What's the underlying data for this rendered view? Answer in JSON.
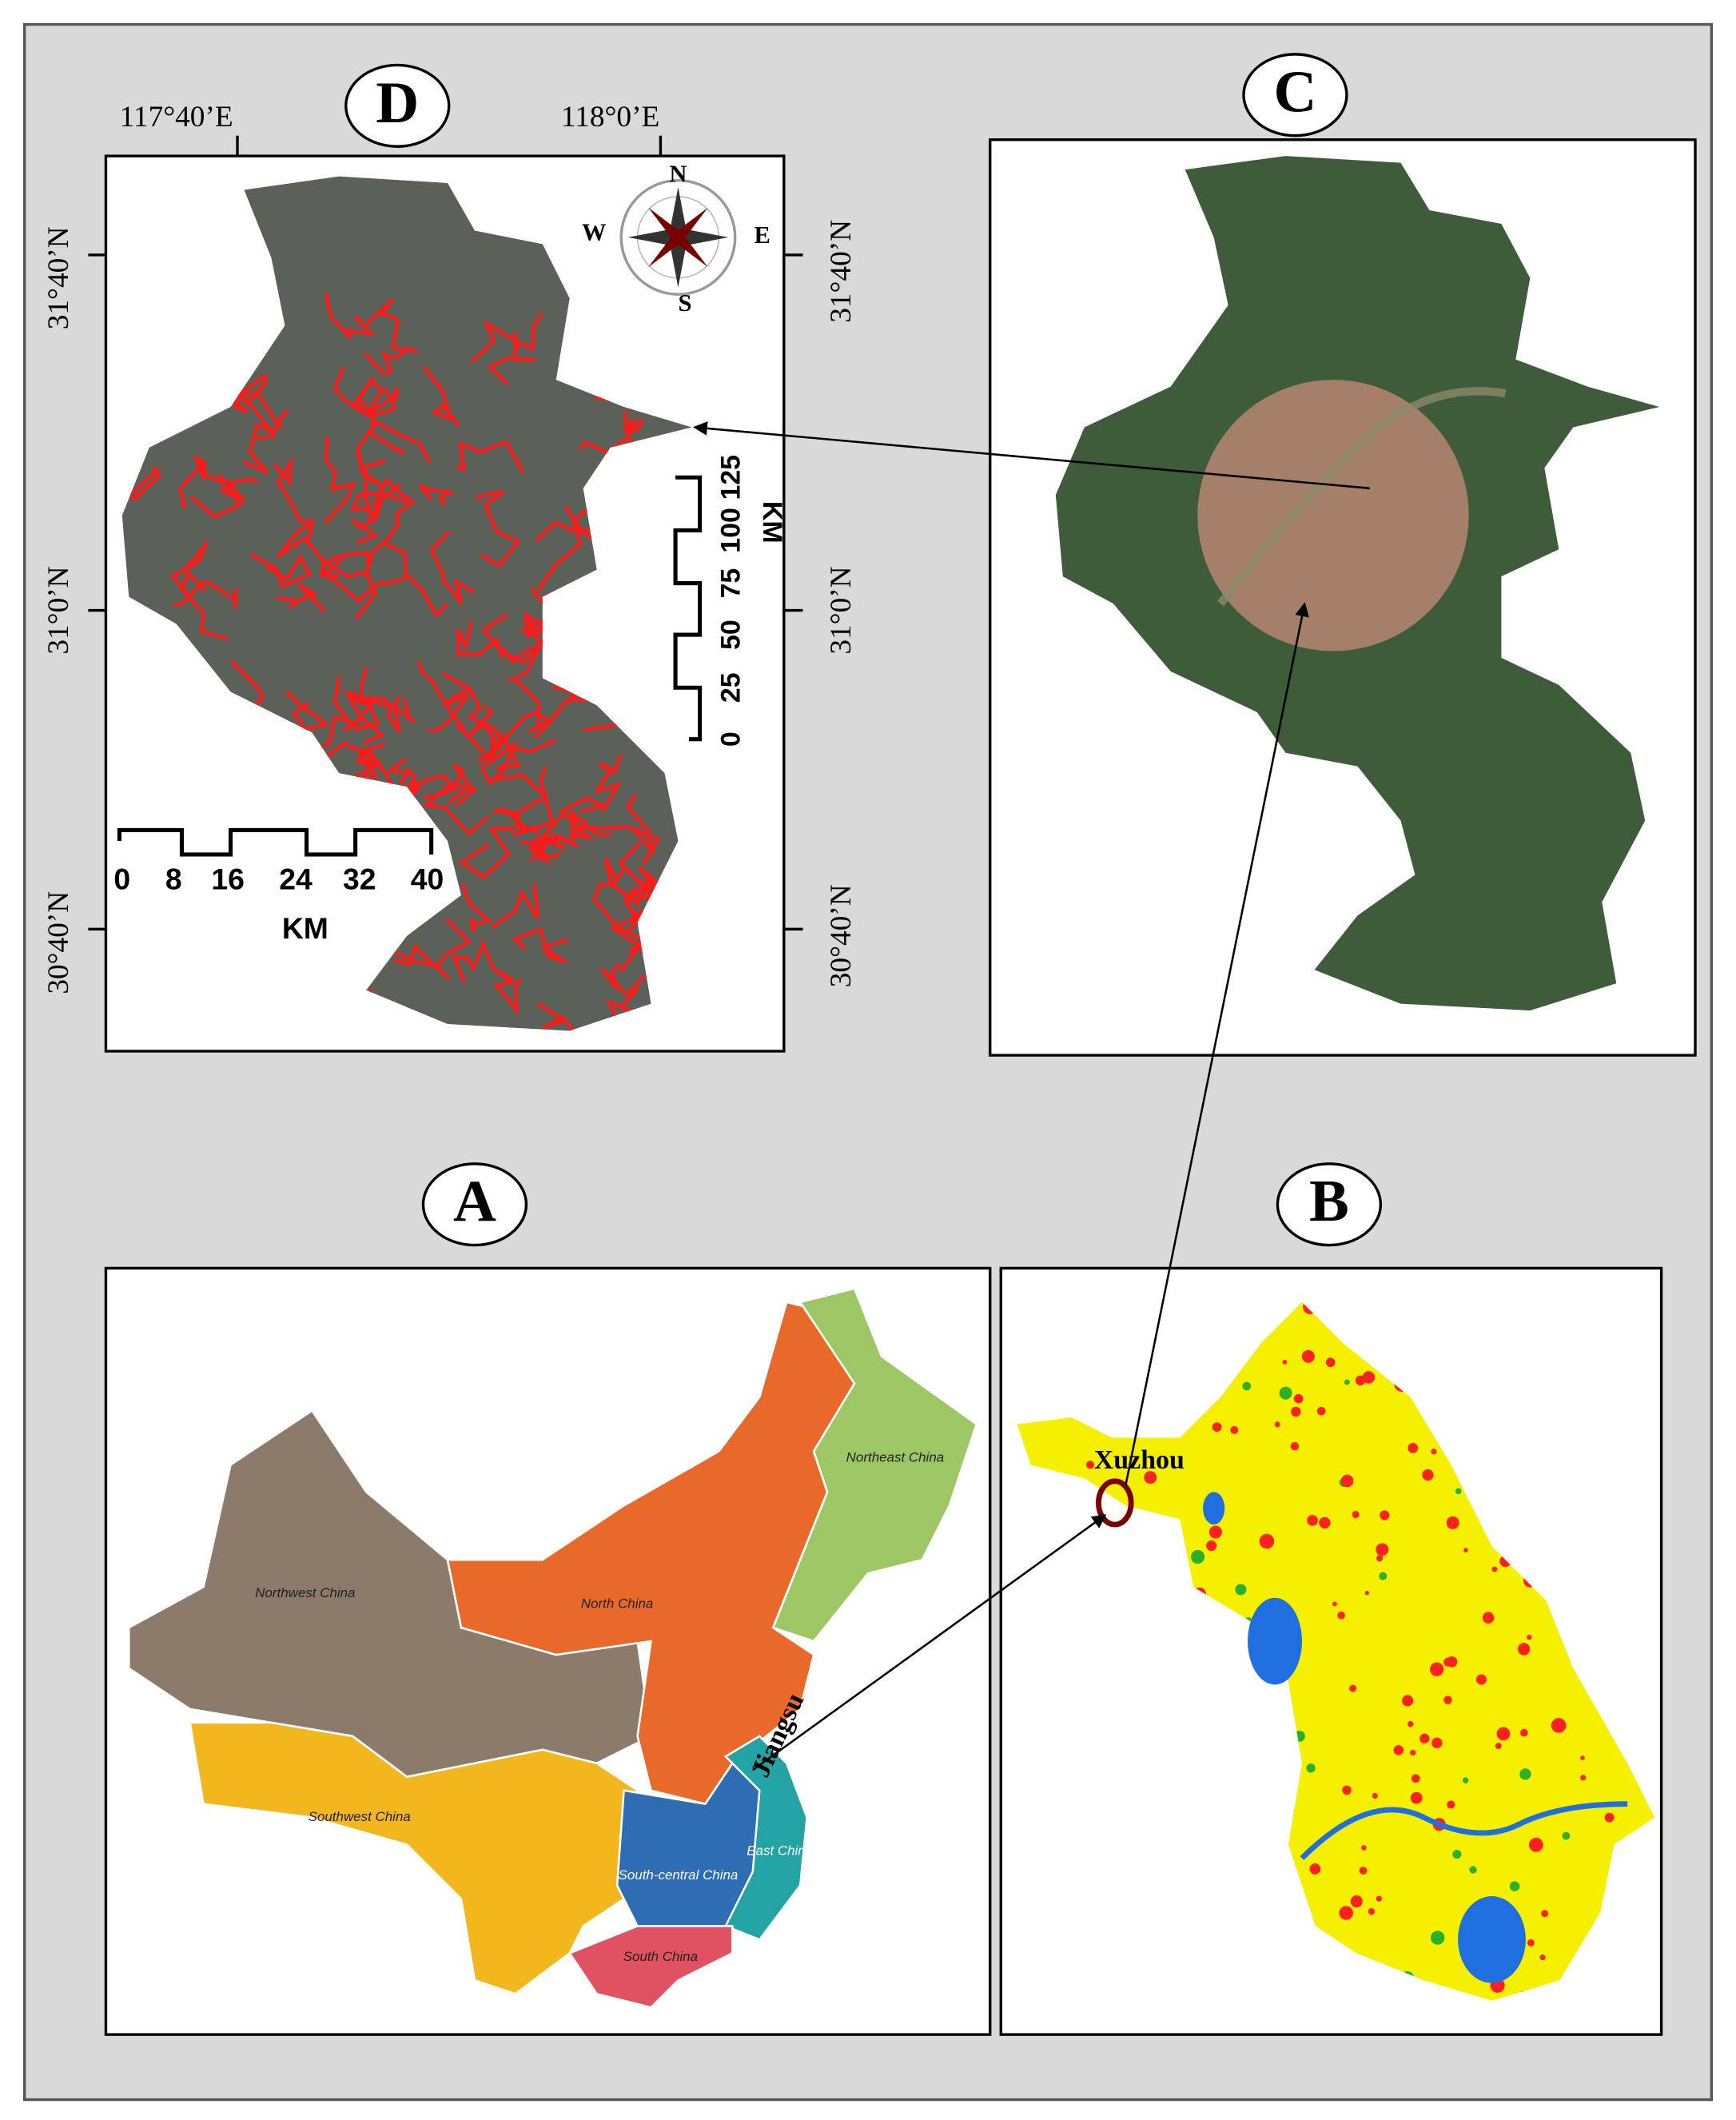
{
  "panels": {
    "D": {
      "label": "D",
      "lon_labels": [
        "117°40’E",
        "118°0’E"
      ],
      "lat_labels": [
        "31°40’N",
        "31°0’N",
        "30°40’N"
      ],
      "compass": {
        "n": "N",
        "s": "S",
        "e": "E",
        "w": "W"
      },
      "scale_h": {
        "ticks": [
          0,
          8,
          16,
          24,
          32,
          40
        ],
        "unit": "KM"
      },
      "scale_v": {
        "ticks": [
          0,
          25,
          50,
          75,
          100,
          125
        ],
        "unit": "KM"
      }
    },
    "C": {
      "label": "C"
    },
    "A": {
      "label": "A",
      "regions": [
        "Northwest China",
        "North China",
        "Northeast China",
        "Southwest China",
        "South-central China",
        "East China",
        "South China"
      ],
      "callout": "Jiangsu"
    },
    "B": {
      "label": "B",
      "callout": "Xuzhou"
    }
  }
}
